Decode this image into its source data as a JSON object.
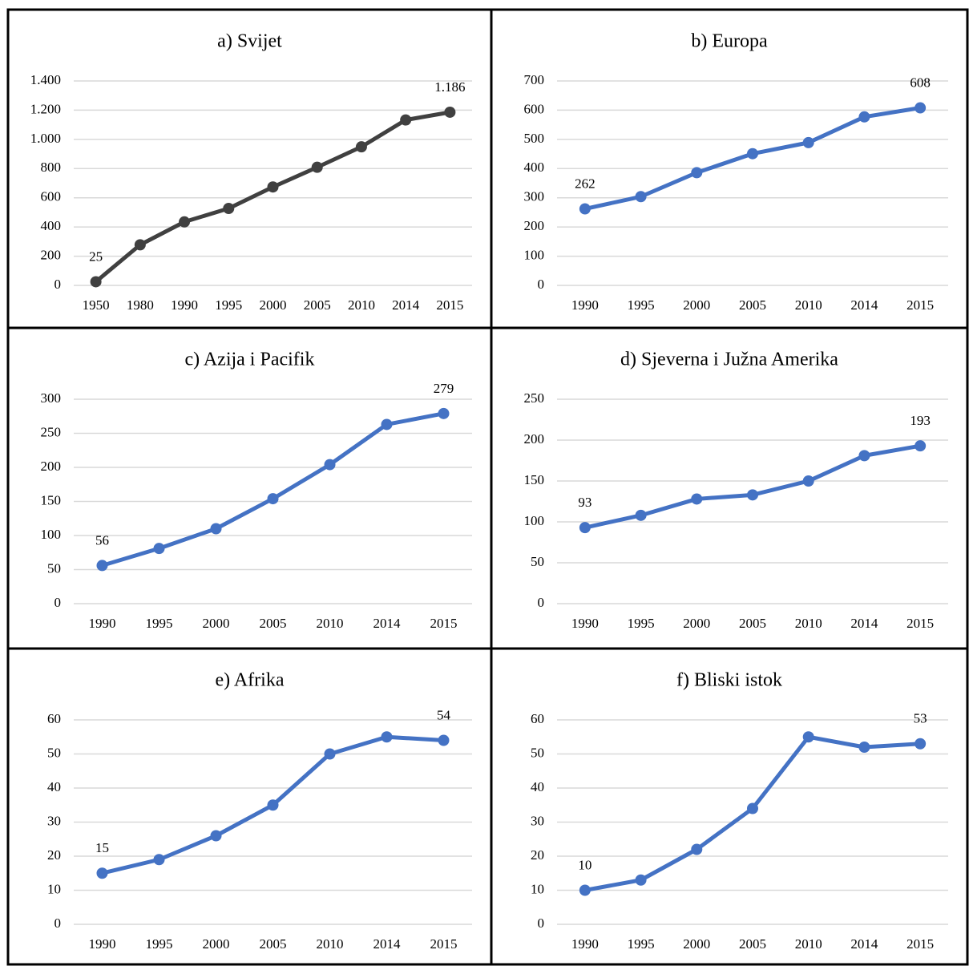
{
  "chart_data": [
    {
      "type": "line",
      "title": "a) Svijet",
      "categories": [
        "1950",
        "1980",
        "1990",
        "1995",
        "2000",
        "2005",
        "2010",
        "2014",
        "2015"
      ],
      "values": [
        25,
        278,
        435,
        527,
        674,
        809,
        949,
        1133,
        1186
      ],
      "value_labels": [
        "25",
        null,
        null,
        null,
        null,
        null,
        null,
        null,
        "1.186"
      ],
      "color": "#404040",
      "ylim": [
        0,
        1400
      ],
      "yticks": [
        0,
        200,
        400,
        600,
        800,
        {
          "value": 1000,
          "label": "1.000"
        },
        {
          "value": 1200,
          "label": "1.200"
        },
        {
          "value": 1400,
          "label": "1.400"
        }
      ],
      "grid": true
    },
    {
      "type": "line",
      "title": "b) Europa",
      "categories": [
        "1990",
        "1995",
        "2000",
        "2005",
        "2010",
        "2014",
        "2015"
      ],
      "values": [
        262,
        304,
        386,
        451,
        489,
        577,
        608
      ],
      "value_labels": [
        "262",
        null,
        null,
        null,
        null,
        null,
        "608"
      ],
      "color": "#4472c4",
      "ylim": [
        0,
        700
      ],
      "yticks": [
        0,
        100,
        200,
        300,
        400,
        500,
        600,
        700
      ],
      "grid": true
    },
    {
      "type": "line",
      "title": "c) Azija i Pacifik",
      "categories": [
        "1990",
        "1995",
        "2000",
        "2005",
        "2010",
        "2014",
        "2015"
      ],
      "values": [
        56,
        81,
        110,
        154,
        204,
        263,
        279
      ],
      "value_labels": [
        "56",
        null,
        null,
        null,
        null,
        null,
        "279"
      ],
      "color": "#4472c4",
      "ylim": [
        0,
        300
      ],
      "yticks": [
        0,
        50,
        100,
        150,
        200,
        250,
        300
      ],
      "grid": true
    },
    {
      "type": "line",
      "title": "d) Sjeverna i Južna Amerika",
      "categories": [
        "1990",
        "1995",
        "2000",
        "2005",
        "2010",
        "2014",
        "2015"
      ],
      "values": [
        93,
        108,
        128,
        133,
        150,
        181,
        193
      ],
      "value_labels": [
        "93",
        null,
        null,
        null,
        null,
        null,
        "193"
      ],
      "color": "#4472c4",
      "ylim": [
        0,
        250
      ],
      "yticks": [
        0,
        50,
        100,
        150,
        200,
        250
      ],
      "grid": true
    },
    {
      "type": "line",
      "title": "e) Afrika",
      "categories": [
        "1990",
        "1995",
        "2000",
        "2005",
        "2010",
        "2014",
        "2015"
      ],
      "values": [
        15,
        19,
        26,
        35,
        50,
        55,
        54
      ],
      "value_labels": [
        "15",
        null,
        null,
        null,
        null,
        null,
        "54"
      ],
      "color": "#4472c4",
      "ylim": [
        0,
        60
      ],
      "yticks": [
        0,
        10,
        20,
        30,
        40,
        50,
        60
      ],
      "grid": true
    },
    {
      "type": "line",
      "title": "f) Bliski istok",
      "categories": [
        "1990",
        "1995",
        "2000",
        "2005",
        "2010",
        "2014",
        "2015"
      ],
      "values": [
        10,
        13,
        22,
        34,
        55,
        52,
        53
      ],
      "value_labels": [
        "10",
        null,
        null,
        null,
        null,
        null,
        "53"
      ],
      "color": "#4472c4",
      "ylim": [
        0,
        60
      ],
      "yticks": [
        0,
        10,
        20,
        30,
        40,
        50,
        60
      ],
      "grid": true
    }
  ]
}
